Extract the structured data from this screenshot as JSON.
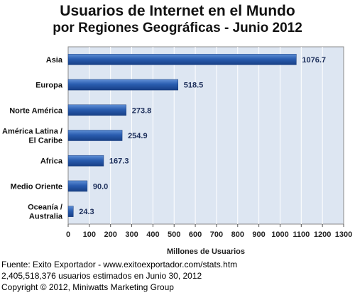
{
  "title_line1": "Usuarios de Internet en el Mundo",
  "title_line2": "por Regiones Geográficas - Junio 2012",
  "chart_data": {
    "type": "bar",
    "orientation": "horizontal",
    "categories": [
      [
        "Asia"
      ],
      [
        "Europa"
      ],
      [
        "Norte América"
      ],
      [
        "América Latina /",
        "El Caribe"
      ],
      [
        "Africa"
      ],
      [
        "Medio Oriente"
      ],
      [
        "Oceanía  /",
        "Australia"
      ]
    ],
    "values": [
      1076.7,
      518.5,
      273.8,
      254.9,
      167.3,
      90.0,
      24.3
    ],
    "value_labels": [
      "1076.7",
      "518.5",
      "273.8",
      "254.9",
      "167.3",
      "90.0",
      "24.3"
    ],
    "xlabel": "Millones de Usuarios",
    "xlim": [
      0,
      1300
    ],
    "xticks": [
      0,
      100,
      200,
      300,
      400,
      500,
      600,
      700,
      800,
      900,
      1000,
      1100,
      1200,
      1300
    ],
    "grid": true,
    "bar_color": "#2255aa",
    "plot_bg": "#dde6f2"
  },
  "footer": {
    "line1": "Fuente: Exito Exportador - www.exitoexportador.com/stats.htm",
    "line2": "2,405,518,376 usuarios estimados en Junio 30, 2012",
    "line3": "Copyright © 2012, Miniwatts Marketing Group"
  }
}
